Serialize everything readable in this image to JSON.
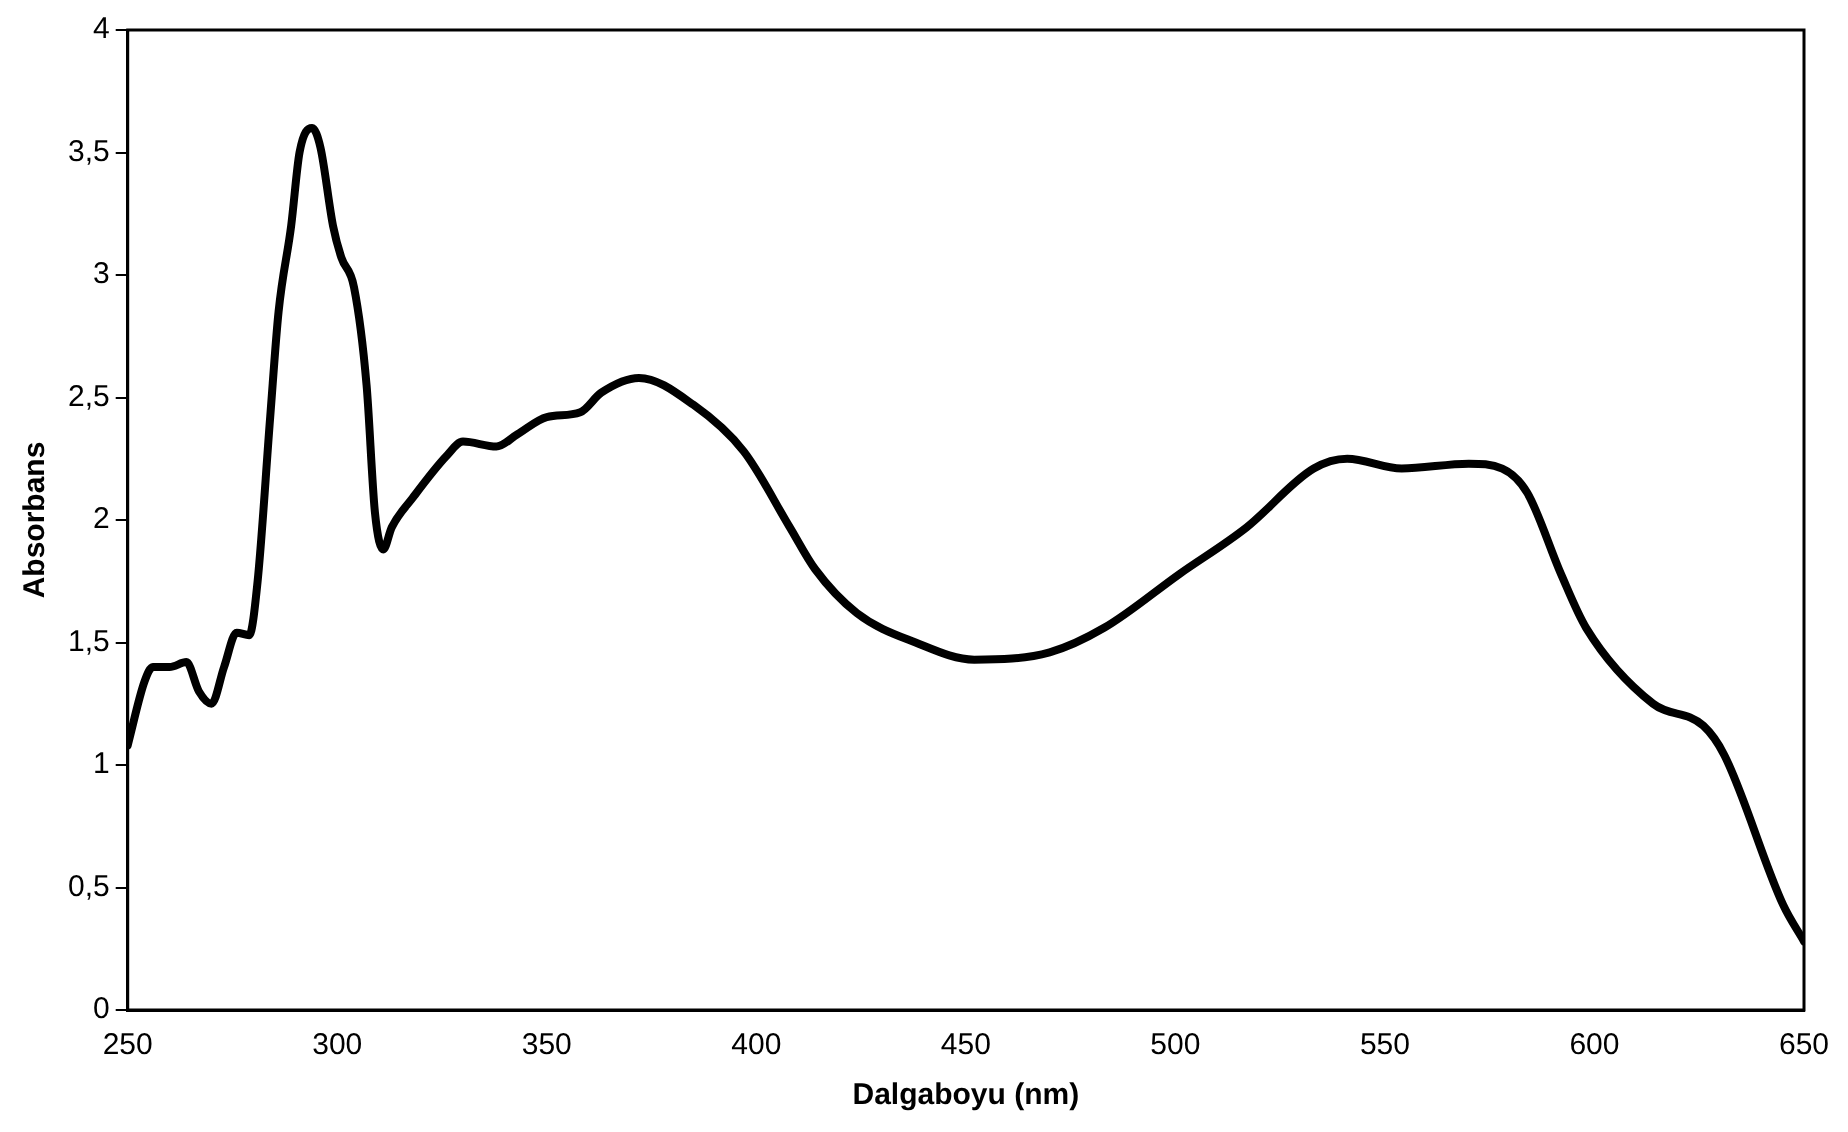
{
  "chart_data": {
    "type": "line",
    "xlabel": "Dalgaboyu (nm)",
    "ylabel": "Absorbans",
    "x": [
      250,
      254,
      256,
      260,
      264,
      267,
      270,
      273,
      276,
      279,
      281,
      284,
      286,
      289,
      291,
      294,
      296,
      299,
      301,
      304,
      307,
      309,
      311,
      313,
      318,
      326,
      330,
      338,
      343,
      350,
      358,
      363,
      372,
      385,
      397,
      408,
      414,
      424,
      438,
      452,
      470,
      483,
      501,
      517,
      533,
      541,
      554,
      570,
      578,
      584,
      592,
      598,
      614,
      626,
      631,
      645,
      650
    ],
    "series": [
      {
        "color": "#000000",
        "values": [
          1.08,
          1.34,
          1.4,
          1.4,
          1.42,
          1.3,
          1.25,
          1.4,
          1.54,
          1.53,
          1.75,
          2.42,
          2.85,
          3.2,
          3.5,
          3.6,
          3.52,
          3.2,
          3.07,
          2.95,
          2.55,
          2.03,
          1.88,
          1.97,
          2.09,
          2.26,
          2.32,
          2.3,
          2.35,
          2.42,
          2.44,
          2.52,
          2.58,
          2.47,
          2.28,
          1.97,
          1.8,
          1.62,
          1.5,
          1.43,
          1.46,
          1.56,
          1.78,
          1.97,
          2.21,
          2.25,
          2.21,
          2.23,
          2.21,
          2.11,
          1.78,
          1.56,
          1.25,
          1.16,
          1.04,
          0.43,
          0.28
        ]
      }
    ],
    "xlim": [
      250,
      650
    ],
    "xticks": [
      250,
      300,
      350,
      400,
      450,
      500,
      550,
      600,
      650
    ],
    "ylim": [
      0,
      4
    ],
    "yticks": [
      0,
      {
        "value": 0.5,
        "label": "0,5"
      },
      1,
      {
        "value": 1.5,
        "label": "1,5"
      },
      2,
      {
        "value": 2.5,
        "label": "2,5"
      },
      3,
      {
        "value": 3.5,
        "label": "3,5"
      },
      4
    ],
    "grid": false,
    "legend": false,
    "marker": "none",
    "line_style": "solid"
  }
}
